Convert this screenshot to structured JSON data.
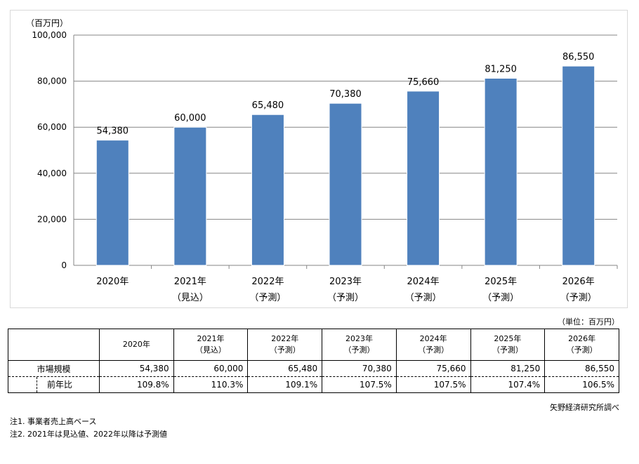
{
  "chart_data": {
    "type": "bar",
    "unit_label": "（百万円）",
    "categories": [
      {
        "year": "2020年",
        "tag": ""
      },
      {
        "year": "2021年",
        "tag": "（見込）"
      },
      {
        "year": "2022年",
        "tag": "（予測）"
      },
      {
        "year": "2023年",
        "tag": "（予測）"
      },
      {
        "year": "2024年",
        "tag": "（予測）"
      },
      {
        "year": "2025年",
        "tag": "（予測）"
      },
      {
        "year": "2026年",
        "tag": "（予測）"
      }
    ],
    "values": [
      54380,
      60000,
      65480,
      70380,
      75660,
      81250,
      86550
    ],
    "data_labels": [
      "54,380",
      "60,000",
      "65,480",
      "70,380",
      "75,660",
      "81,250",
      "86,550"
    ],
    "ylim": [
      0,
      100000
    ],
    "yticks": [
      0,
      20000,
      40000,
      60000,
      80000,
      100000
    ],
    "ytick_labels": [
      "0",
      "20,000",
      "40,000",
      "60,000",
      "80,000",
      "100,000"
    ],
    "grid": true,
    "colors": {
      "bar": "#4f81bd",
      "bar_edge": "#ffffff",
      "grid": "#868686"
    }
  },
  "table": {
    "unit_note": "（単位：百万円）",
    "headers": [
      {
        "year": "2020年",
        "tag": ""
      },
      {
        "year": "2021年",
        "tag": "（見込）"
      },
      {
        "year": "2022年",
        "tag": "（予測）"
      },
      {
        "year": "2023年",
        "tag": "（予測）"
      },
      {
        "year": "2024年",
        "tag": "（予測）"
      },
      {
        "year": "2025年",
        "tag": "（予測）"
      },
      {
        "year": "2026年",
        "tag": "（予測）"
      }
    ],
    "rows": [
      {
        "label": "市場規模",
        "values": [
          "54,380",
          "60,000",
          "65,480",
          "70,380",
          "75,660",
          "81,250",
          "86,550"
        ]
      },
      {
        "label": "前年比",
        "values": [
          "109.8%",
          "110.3%",
          "109.1%",
          "107.5%",
          "107.5%",
          "107.4%",
          "106.5%"
        ]
      }
    ],
    "source": "矢野経済研究所調べ"
  },
  "notes": [
    "注1.  事業者売上高ベース",
    "注2.  2021年は見込値、2022年以降は予測値"
  ]
}
